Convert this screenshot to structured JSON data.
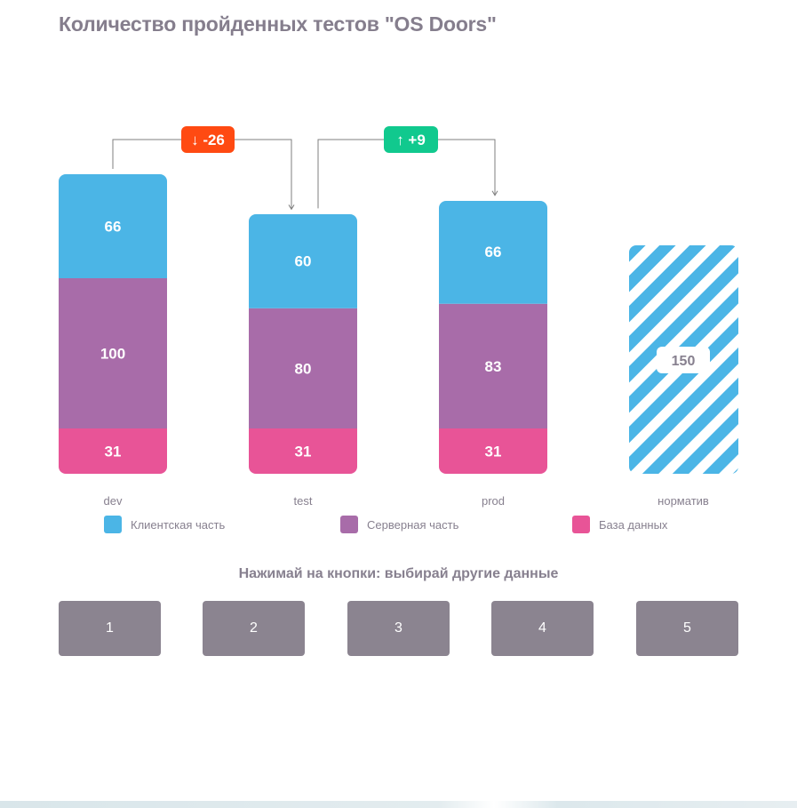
{
  "title": "Количество пройденных тестов \"OS Doors\"",
  "colors": {
    "client": "#4bb5e6",
    "server": "#a86ca9",
    "db": "#e85497",
    "down": "#ff4a12",
    "up": "#11c98e",
    "button": "#8b8490"
  },
  "chart_data": {
    "type": "bar",
    "stacked": true,
    "categories": [
      "dev",
      "test",
      "prod",
      "норматив"
    ],
    "series": [
      {
        "name": "База данных",
        "values": [
          31,
          31,
          31,
          null
        ]
      },
      {
        "name": "Серверная часть",
        "values": [
          100,
          80,
          83,
          null
        ]
      },
      {
        "name": "Клиентская часть",
        "values": [
          66,
          60,
          66,
          null
        ]
      }
    ],
    "norm": {
      "category": "норматив",
      "value": 150,
      "label": "150"
    },
    "deltas": [
      {
        "from": "dev",
        "to": "test",
        "label": "↓ -26",
        "direction": "down"
      },
      {
        "from": "test",
        "to": "prod",
        "label": "↑ +9",
        "direction": "up"
      }
    ],
    "legend_position": "bottom"
  },
  "legend": [
    {
      "label": "Клиентская часть",
      "color": "#4bb5e6"
    },
    {
      "label": "Серверная часть",
      "color": "#a86ca9"
    },
    {
      "label": "База данных",
      "color": "#e85497"
    }
  ],
  "prompt": "Нажимай на кнопки: выбирай другие данные",
  "buttons": [
    "1",
    "2",
    "3",
    "4",
    "5"
  ]
}
